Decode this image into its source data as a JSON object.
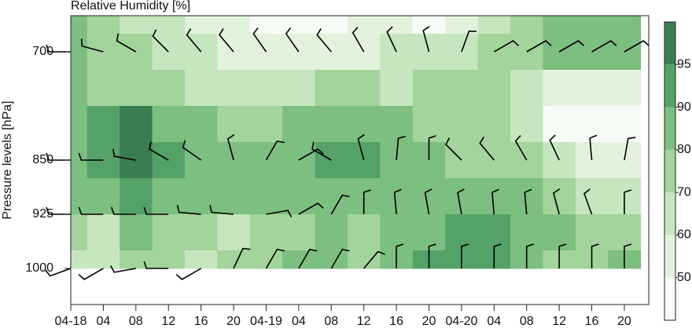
{
  "chart_data": {
    "type": "contour",
    "title": "Relative Humidity [%]",
    "y_label": "Pressure levels [hPa]",
    "x": [
      0,
      4,
      8,
      12,
      16,
      20,
      24,
      28,
      32,
      36,
      40,
      44,
      48,
      52,
      56,
      60,
      64,
      68
    ],
    "y": [
      650,
      700,
      750,
      800,
      850,
      900,
      950,
      1000
    ],
    "z": [
      [
        80,
        75,
        65,
        60,
        55,
        50,
        45,
        45,
        45,
        50,
        55,
        45,
        55,
        60,
        75,
        80,
        80,
        80
      ],
      [
        85,
        75,
        70,
        65,
        60,
        55,
        55,
        55,
        55,
        55,
        60,
        60,
        65,
        70,
        75,
        80,
        82,
        80
      ],
      [
        80,
        75,
        75,
        70,
        65,
        65,
        65,
        65,
        70,
        70,
        65,
        70,
        70,
        70,
        65,
        55,
        50,
        55
      ],
      [
        85,
        92,
        96,
        88,
        80,
        75,
        75,
        80,
        85,
        85,
        80,
        75,
        72,
        75,
        60,
        45,
        40,
        45
      ],
      [
        88,
        92,
        96,
        92,
        85,
        82,
        80,
        88,
        92,
        93,
        85,
        80,
        78,
        75,
        70,
        60,
        50,
        55
      ],
      [
        85,
        85,
        93,
        88,
        80,
        80,
        80,
        85,
        88,
        85,
        82,
        80,
        82,
        85,
        80,
        72,
        65,
        68
      ],
      [
        70,
        65,
        80,
        75,
        70,
        68,
        70,
        75,
        80,
        78,
        82,
        88,
        90,
        92,
        88,
        80,
        75,
        78
      ],
      [
        68,
        62,
        70,
        72,
        68,
        70,
        75,
        88,
        80,
        78,
        85,
        90,
        92,
        92,
        85,
        78,
        75,
        80
      ]
    ],
    "xlim": [
      0,
      71
    ],
    "ylim": [
      1050,
      650
    ],
    "xticks": [
      {
        "value": 0,
        "label": "04-18"
      },
      {
        "value": 4,
        "label": "04"
      },
      {
        "value": 8,
        "label": "08"
      },
      {
        "value": 12,
        "label": "12"
      },
      {
        "value": 16,
        "label": "16"
      },
      20,
      {
        "value": 24,
        "label": "04-19"
      },
      {
        "value": 28,
        "label": "04"
      },
      {
        "value": 32,
        "label": "08"
      },
      {
        "value": 36,
        "label": "12"
      },
      {
        "value": 40,
        "label": "16"
      },
      {
        "value": 44,
        "label": "20"
      },
      {
        "value": 48,
        "label": "04-20"
      },
      {
        "value": 52,
        "label": "04"
      },
      {
        "value": 56,
        "label": "08"
      },
      {
        "value": 60,
        "label": "12"
      },
      {
        "value": 64,
        "label": "16"
      },
      {
        "value": 68,
        "label": "20"
      }
    ],
    "yticks": [
      700,
      850,
      925,
      1000
    ],
    "levels": [
      50,
      60,
      70,
      80,
      90,
      95
    ],
    "colors": [
      "#f7fbf5",
      "#e3f2dc",
      "#c6e6bf",
      "#a3d49b",
      "#7cbf80",
      "#55a268",
      "#3b7d53"
    ],
    "wind": {
      "levels": [
        700,
        850,
        925,
        1000
      ],
      "direction": [
        [
          270,
          285,
          300,
          315,
          320,
          320,
          325,
          325,
          320,
          330,
          335,
          345,
          20,
          60,
          60,
          60,
          60,
          60
        ],
        [
          270,
          270,
          280,
          300,
          305,
          345,
          30,
          60,
          300,
          345,
          5,
          0,
          315,
          320,
          330,
          335,
          355,
          10
        ],
        [
          270,
          270,
          270,
          270,
          275,
          275,
          80,
          60,
          30,
          0,
          355,
          350,
          350,
          355,
          355,
          345,
          340,
          0
        ],
        [
          250,
          240,
          260,
          270,
          240,
          25,
          30,
          30,
          30,
          40,
          0,
          0,
          0,
          0,
          0,
          0,
          0,
          0
        ]
      ]
    }
  }
}
